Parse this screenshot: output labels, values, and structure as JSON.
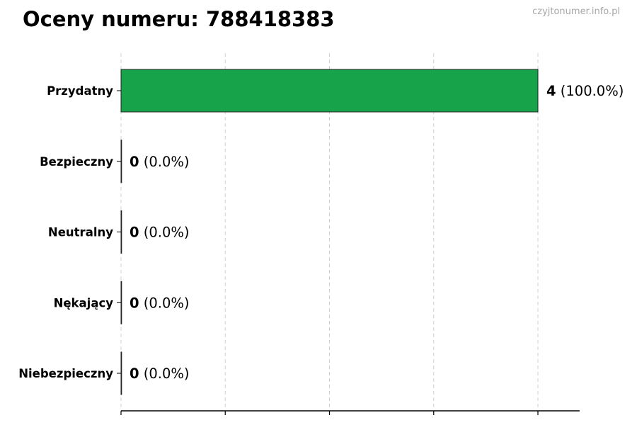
{
  "chart_data": {
    "type": "bar",
    "orientation": "horizontal",
    "title": "Oceny numeru: 788418383",
    "watermark": "czyjtonumer.info.pl",
    "categories": [
      "Przydatny",
      "Bezpieczny",
      "Neutralny",
      "Nękający",
      "Niebezpieczny"
    ],
    "values": [
      4,
      0,
      0,
      0,
      0
    ],
    "percent_labels": [
      "(100.0%)",
      "(0.0%)",
      "(0.0%)",
      "(0.0%)",
      "(0.0%)"
    ],
    "bar_color": "#17a34a",
    "xlim": [
      0,
      4.4
    ],
    "xticks": [
      0,
      1,
      2,
      3,
      4
    ],
    "grid": "x-dashed",
    "xlabel": "",
    "ylabel": ""
  }
}
